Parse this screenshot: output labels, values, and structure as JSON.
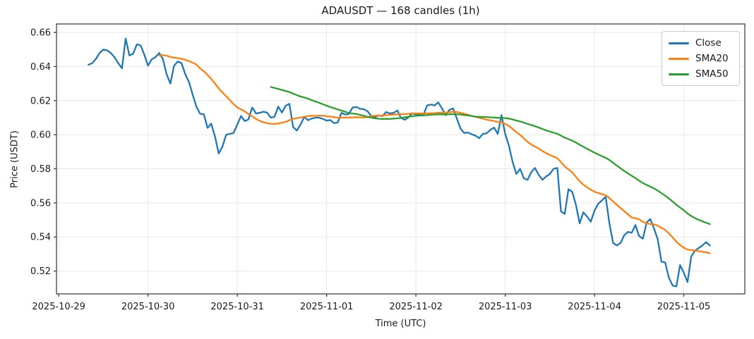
{
  "figure": {
    "background": "#ffffff",
    "text_color": "#1a1a1a",
    "grid_color": "#e8e8ea",
    "spine_color": "#333333"
  },
  "chart_data": {
    "type": "line",
    "title": "ADAUSDT — 168 candles (1h)",
    "xlabel": "Time (UTC)",
    "ylabel": "Price (USDT)",
    "symbol": "ADAUSDT",
    "candle_count": 168,
    "interval": "1h",
    "grid": true,
    "legend_position": "upper right",
    "x_tick_labels": [
      "2025-10-29",
      "2025-10-30",
      "2025-10-31",
      "2025-11-01",
      "2025-11-02",
      "2025-11-03",
      "2025-11-04",
      "2025-11-05"
    ],
    "x_tick_positions": [
      -8,
      16,
      40,
      64,
      88,
      112,
      136,
      160
    ],
    "xlim": [
      -8.6,
      176.4
    ],
    "y_ticks": [
      0.52,
      0.54,
      0.56,
      0.58,
      0.6,
      0.62,
      0.64,
      0.66
    ],
    "ylim": [
      0.5066,
      0.665
    ],
    "series": [
      {
        "name": "Close",
        "color": "#1f77b4",
        "values": [
          0.641,
          0.642,
          0.6445,
          0.648,
          0.65,
          0.6495,
          0.648,
          0.6455,
          0.642,
          0.639,
          0.6565,
          0.6465,
          0.6475,
          0.653,
          0.6525,
          0.647,
          0.6405,
          0.6443,
          0.6455,
          0.648,
          0.6445,
          0.6355,
          0.63,
          0.6405,
          0.643,
          0.642,
          0.6355,
          0.631,
          0.6235,
          0.6165,
          0.6123,
          0.612,
          0.604,
          0.6065,
          0.599,
          0.589,
          0.593,
          0.6,
          0.6005,
          0.601,
          0.606,
          0.611,
          0.608,
          0.609,
          0.616,
          0.6125,
          0.6128,
          0.6135,
          0.613,
          0.61,
          0.6105,
          0.6165,
          0.613,
          0.617,
          0.6182,
          0.6045,
          0.6025,
          0.606,
          0.6105,
          0.6085,
          0.6095,
          0.61,
          0.61,
          0.6093,
          0.6083,
          0.6086,
          0.6068,
          0.6072,
          0.6128,
          0.6118,
          0.6122,
          0.616,
          0.6163,
          0.6152,
          0.615,
          0.6138,
          0.611,
          0.6102,
          0.6114,
          0.611,
          0.6133,
          0.6125,
          0.6128,
          0.6142,
          0.6098,
          0.6088,
          0.6102,
          0.6125,
          0.612,
          0.612,
          0.6114,
          0.6172,
          0.6177,
          0.6172,
          0.619,
          0.6155,
          0.6115,
          0.6145,
          0.6155,
          0.6095,
          0.6035,
          0.601,
          0.6013,
          0.6002,
          0.5995,
          0.598,
          0.6005,
          0.6008,
          0.6028,
          0.6042,
          0.6005,
          0.6115,
          0.6005,
          0.5935,
          0.584,
          0.577,
          0.58,
          0.5745,
          0.5735,
          0.578,
          0.5805,
          0.5765,
          0.5735,
          0.5755,
          0.577,
          0.58,
          0.5805,
          0.555,
          0.5535,
          0.568,
          0.5665,
          0.559,
          0.548,
          0.5545,
          0.552,
          0.549,
          0.5555,
          0.5595,
          0.5615,
          0.5635,
          0.548,
          0.5365,
          0.535,
          0.5365,
          0.541,
          0.543,
          0.5425,
          0.547,
          0.5405,
          0.539,
          0.5485,
          0.5505,
          0.545,
          0.5385,
          0.5255,
          0.525,
          0.516,
          0.5115,
          0.511,
          0.5235,
          0.519,
          0.5135,
          0.5285,
          0.532,
          0.5335,
          0.535,
          0.537,
          0.535
        ]
      },
      {
        "name": "SMA20",
        "color": "#ff7f0e",
        "sma_period": 20,
        "derived_from": "Close"
      },
      {
        "name": "SMA50",
        "color": "#2ca02c",
        "sma_period": 50,
        "derived_from": "Close"
      }
    ]
  },
  "legend": {
    "items": [
      {
        "label": "Close",
        "color": "#1f77b4"
      },
      {
        "label": "SMA20",
        "color": "#ff7f0e"
      },
      {
        "label": "SMA50",
        "color": "#2ca02c"
      }
    ]
  }
}
